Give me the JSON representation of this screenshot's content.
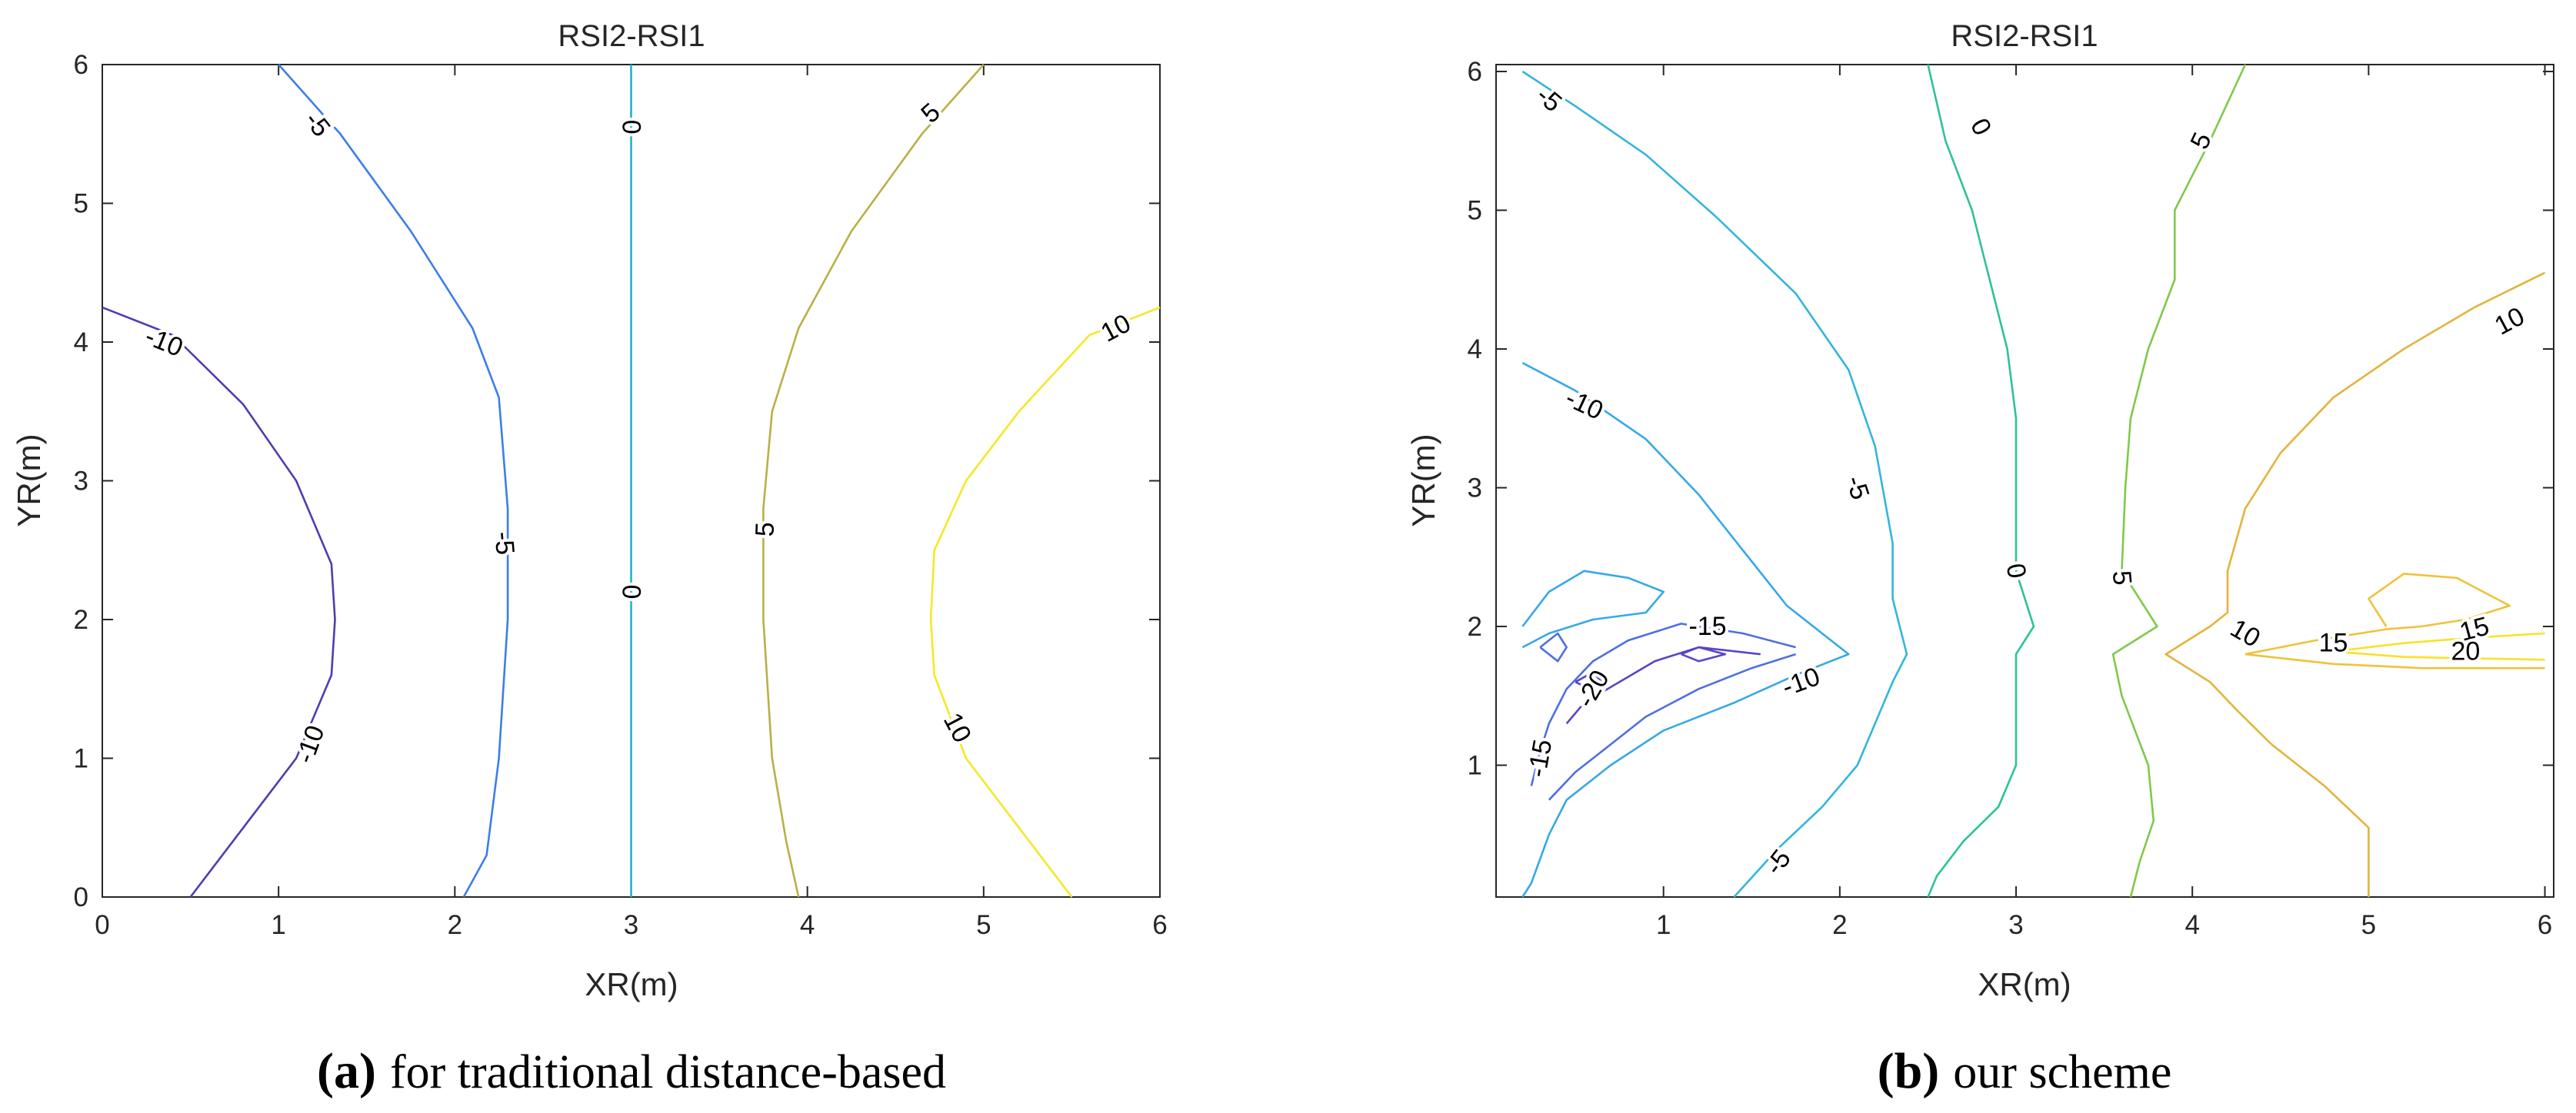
{
  "chart_data": [
    {
      "type": "contour",
      "title": "RSI2-RSI1",
      "xlabel": "XR(m)",
      "ylabel": "YR(m)",
      "xlim": [
        0,
        6
      ],
      "ylim": [
        0,
        6
      ],
      "xticks": [
        "0",
        "1",
        "2",
        "3",
        "4",
        "5",
        "6"
      ],
      "yticks": [
        "0",
        "1",
        "2",
        "3",
        "4",
        "5",
        "6"
      ],
      "caption_letter": "(a)",
      "caption_text": "for traditional distance-based",
      "contours": [
        {
          "level": -10,
          "label": "-10",
          "color": "#4b3fb0",
          "points": [
            [
              0,
              4.25
            ],
            [
              0.4,
              4.05
            ],
            [
              0.8,
              3.55
            ],
            [
              1.1,
              3.0
            ],
            [
              1.3,
              2.4
            ],
            [
              1.32,
              2.0
            ],
            [
              1.3,
              1.6
            ],
            [
              1.1,
              1.0
            ],
            [
              0.8,
              0.5
            ],
            [
              0.5,
              0.0
            ]
          ]
        },
        {
          "level": -5,
          "label": "-5",
          "color": "#3c7ee8",
          "points": [
            [
              1.0,
              6.0
            ],
            [
              1.35,
              5.5
            ],
            [
              1.75,
              4.8
            ],
            [
              2.1,
              4.1
            ],
            [
              2.25,
              3.6
            ],
            [
              2.3,
              2.8
            ],
            [
              2.3,
              2.0
            ],
            [
              2.25,
              1.0
            ],
            [
              2.18,
              0.3
            ],
            [
              2.05,
              0.0
            ]
          ]
        },
        {
          "level": 0,
          "label": "0",
          "color": "#22b2c4",
          "points": [
            [
              3.0,
              6.0
            ],
            [
              3.0,
              0.0
            ]
          ]
        },
        {
          "level": 5,
          "label": "5",
          "color": "#b9b045",
          "points": [
            [
              5.0,
              6.0
            ],
            [
              4.65,
              5.5
            ],
            [
              4.25,
              4.8
            ],
            [
              3.95,
              4.1
            ],
            [
              3.8,
              3.5
            ],
            [
              3.75,
              2.8
            ],
            [
              3.75,
              2.0
            ],
            [
              3.8,
              1.0
            ],
            [
              3.88,
              0.4
            ],
            [
              3.95,
              0.0
            ]
          ]
        },
        {
          "level": 10,
          "label": "10",
          "color": "#f5e826",
          "points": [
            [
              6.0,
              4.25
            ],
            [
              5.6,
              4.05
            ],
            [
              5.2,
              3.5
            ],
            [
              4.9,
              3.0
            ],
            [
              4.72,
              2.5
            ],
            [
              4.7,
              2.0
            ],
            [
              4.72,
              1.6
            ],
            [
              4.9,
              1.0
            ],
            [
              5.2,
              0.5
            ],
            [
              5.5,
              0.0
            ]
          ]
        }
      ],
      "contour_labels": [
        {
          "text": "-5",
          "x": 1.22,
          "y": 5.57,
          "angle": 52
        },
        {
          "text": "-10",
          "x": 0.35,
          "y": 4.0,
          "angle": 22
        },
        {
          "text": "-5",
          "x": 2.28,
          "y": 2.55,
          "angle": 85
        },
        {
          "text": "-10",
          "x": 1.18,
          "y": 1.1,
          "angle": -70
        },
        {
          "text": "0",
          "x": 3.0,
          "y": 5.55,
          "angle": 90
        },
        {
          "text": "0",
          "x": 3.0,
          "y": 2.2,
          "angle": 90
        },
        {
          "text": "5",
          "x": 4.7,
          "y": 5.65,
          "angle": -42
        },
        {
          "text": "5",
          "x": 3.76,
          "y": 2.65,
          "angle": -88
        },
        {
          "text": "10",
          "x": 5.75,
          "y": 4.1,
          "angle": -28
        },
        {
          "text": "10",
          "x": 4.85,
          "y": 1.22,
          "angle": 62
        }
      ]
    },
    {
      "type": "contour",
      "title": "RSI2-RSI1",
      "xlabel": "XR(m)",
      "ylabel": "YR(m)",
      "xlim": [
        0.05,
        6.05
      ],
      "ylim": [
        0.05,
        6.05
      ],
      "xticks": [
        "1",
        "2",
        "3",
        "4",
        "5",
        "6"
      ],
      "yticks": [
        "1",
        "2",
        "3",
        "4",
        "5",
        "6"
      ],
      "caption_letter": "(b)",
      "caption_text": "our scheme",
      "contours": [
        {
          "level": -5,
          "label": "-5",
          "color": "#33b5dc",
          "points": [
            [
              0.2,
              6.0
            ],
            [
              0.5,
              5.75
            ],
            [
              0.9,
              5.4
            ],
            [
              1.3,
              4.95
            ],
            [
              1.75,
              4.4
            ],
            [
              2.05,
              3.85
            ],
            [
              2.2,
              3.3
            ],
            [
              2.3,
              2.6
            ],
            [
              2.3,
              2.2
            ],
            [
              2.38,
              1.8
            ],
            [
              2.3,
              1.6
            ],
            [
              2.2,
              1.3
            ],
            [
              2.1,
              1.0
            ],
            [
              1.9,
              0.7
            ],
            [
              1.65,
              0.4
            ],
            [
              1.4,
              0.05
            ]
          ]
        },
        {
          "level": -10,
          "label": "-10",
          "color": "#36a8e8",
          "points": [
            [
              0.2,
              3.9
            ],
            [
              0.5,
              3.7
            ],
            [
              0.9,
              3.35
            ],
            [
              1.2,
              2.95
            ],
            [
              1.45,
              2.55
            ],
            [
              1.7,
              2.15
            ],
            [
              2.05,
              1.8
            ],
            [
              1.75,
              1.65
            ],
            [
              1.4,
              1.45
            ],
            [
              1.0,
              1.25
            ],
            [
              0.7,
              1.0
            ],
            [
              0.45,
              0.75
            ],
            [
              0.35,
              0.5
            ],
            [
              0.25,
              0.15
            ],
            [
              0.2,
              0.05
            ]
          ]
        },
        {
          "level": -10,
          "label": "",
          "color": "#36a8e8",
          "points": [
            [
              0.2,
              2.0
            ],
            [
              0.35,
              2.25
            ],
            [
              0.55,
              2.4
            ],
            [
              0.8,
              2.35
            ],
            [
              1.0,
              2.25
            ],
            [
              0.9,
              2.1
            ],
            [
              0.6,
              2.05
            ],
            [
              0.35,
              1.95
            ],
            [
              0.2,
              1.85
            ]
          ]
        },
        {
          "level": -15,
          "label": "-15",
          "color": "#4f6fe0",
          "points": [
            [
              1.75,
              1.85
            ],
            [
              1.45,
              1.95
            ],
            [
              1.1,
              2.02
            ],
            [
              0.8,
              1.9
            ],
            [
              0.6,
              1.75
            ],
            [
              0.45,
              1.55
            ],
            [
              0.35,
              1.3
            ],
            [
              0.3,
              1.1
            ],
            [
              0.25,
              0.85
            ]
          ]
        },
        {
          "level": -15,
          "label": "",
          "color": "#4f6fe0",
          "points": [
            [
              1.75,
              1.8
            ],
            [
              1.5,
              1.7
            ],
            [
              1.2,
              1.55
            ],
            [
              0.9,
              1.35
            ],
            [
              0.7,
              1.15
            ],
            [
              0.5,
              0.95
            ],
            [
              0.35,
              0.75
            ]
          ]
        },
        {
          "level": -15,
          "label": "",
          "color": "#4f6fe0",
          "points": [
            [
              0.3,
              1.85
            ],
            [
              0.4,
              1.95
            ],
            [
              0.45,
              1.85
            ],
            [
              0.4,
              1.75
            ],
            [
              0.3,
              1.85
            ]
          ]
        },
        {
          "level": -20,
          "label": "-20",
          "color": "#5a44c8",
          "points": [
            [
              1.55,
              1.8
            ],
            [
              1.2,
              1.85
            ],
            [
              0.95,
              1.75
            ],
            [
              0.75,
              1.6
            ],
            [
              0.55,
              1.45
            ],
            [
              0.45,
              1.3
            ]
          ]
        },
        {
          "level": -20,
          "label": "",
          "color": "#5a44c8",
          "points": [
            [
              1.1,
              1.8
            ],
            [
              1.2,
              1.85
            ],
            [
              1.35,
              1.8
            ],
            [
              1.2,
              1.75
            ],
            [
              1.1,
              1.8
            ]
          ]
        },
        {
          "level": -20,
          "label": "",
          "color": "#5a44c8",
          "points": [
            [
              0.5,
              1.6
            ],
            [
              0.6,
              1.67
            ],
            [
              0.65,
              1.6
            ],
            [
              0.58,
              1.55
            ],
            [
              0.5,
              1.6
            ]
          ]
        },
        {
          "level": 0,
          "label": "0",
          "color": "#2ec19a",
          "points": [
            [
              2.5,
              6.05
            ],
            [
              2.6,
              5.5
            ],
            [
              2.75,
              5.0
            ],
            [
              2.85,
              4.5
            ],
            [
              2.95,
              4.0
            ],
            [
              3.0,
              3.5
            ],
            [
              3.0,
              3.0
            ],
            [
              3.0,
              2.4
            ],
            [
              3.1,
              2.0
            ],
            [
              3.0,
              1.8
            ],
            [
              3.0,
              1.4
            ],
            [
              3.0,
              1.0
            ],
            [
              2.9,
              0.7
            ],
            [
              2.7,
              0.45
            ],
            [
              2.55,
              0.2
            ],
            [
              2.5,
              0.05
            ]
          ]
        },
        {
          "level": 5,
          "label": "5",
          "color": "#7fc94a",
          "points": [
            [
              4.3,
              6.05
            ],
            [
              4.1,
              5.5
            ],
            [
              3.9,
              5.0
            ],
            [
              3.9,
              4.5
            ],
            [
              3.75,
              4.0
            ],
            [
              3.65,
              3.5
            ],
            [
              3.62,
              3.0
            ],
            [
              3.6,
              2.4
            ],
            [
              3.8,
              2.0
            ],
            [
              3.55,
              1.8
            ],
            [
              3.6,
              1.5
            ],
            [
              3.75,
              1.0
            ],
            [
              3.78,
              0.6
            ],
            [
              3.7,
              0.3
            ],
            [
              3.65,
              0.05
            ]
          ]
        },
        {
          "level": 10,
          "label": "10",
          "color": "#e3b43c",
          "points": [
            [
              6.0,
              4.55
            ],
            [
              5.6,
              4.3
            ],
            [
              5.2,
              4.0
            ],
            [
              4.8,
              3.65
            ],
            [
              4.5,
              3.25
            ],
            [
              4.3,
              2.85
            ],
            [
              4.2,
              2.4
            ],
            [
              4.2,
              2.1
            ],
            [
              4.1,
              2.0
            ],
            [
              3.85,
              1.8
            ],
            [
              4.1,
              1.6
            ],
            [
              4.25,
              1.4
            ],
            [
              4.45,
              1.15
            ],
            [
              4.75,
              0.85
            ],
            [
              5.0,
              0.55
            ],
            [
              5.0,
              0.05
            ]
          ]
        },
        {
          "level": 15,
          "label": "15",
          "color": "#f0c23a",
          "points": [
            [
              4.3,
              1.8
            ],
            [
              4.7,
              1.9
            ],
            [
              5.1,
              1.98
            ],
            [
              5.3,
              2.0
            ]
          ]
        },
        {
          "level": 15,
          "label": "",
          "color": "#f0c23a",
          "points": [
            [
              4.3,
              1.8
            ],
            [
              4.8,
              1.73
            ],
            [
              5.3,
              1.7
            ],
            [
              6.0,
              1.7
            ]
          ]
        },
        {
          "level": 15,
          "label": "15",
          "color": "#f0c23a",
          "points": [
            [
              5.1,
              2.0
            ],
            [
              5.0,
              2.2
            ],
            [
              5.2,
              2.38
            ],
            [
              5.5,
              2.35
            ],
            [
              5.8,
              2.15
            ],
            [
              5.55,
              2.05
            ],
            [
              5.3,
              2.0
            ]
          ]
        },
        {
          "level": 20,
          "label": "20",
          "color": "#f6e22c",
          "points": [
            [
              4.8,
              1.82
            ],
            [
              5.2,
              1.88
            ],
            [
              5.6,
              1.92
            ],
            [
              6.0,
              1.95
            ]
          ]
        },
        {
          "level": 20,
          "label": "",
          "color": "#f6e22c",
          "points": [
            [
              4.8,
              1.82
            ],
            [
              5.2,
              1.78
            ],
            [
              5.6,
              1.77
            ],
            [
              6.0,
              1.76
            ]
          ]
        }
      ],
      "contour_labels": [
        {
          "text": "-5",
          "x": 0.35,
          "y": 5.8,
          "angle": 40
        },
        {
          "text": "-10",
          "x": 0.55,
          "y": 3.6,
          "angle": 25
        },
        {
          "text": "-5",
          "x": 2.1,
          "y": 3.0,
          "angle": 72
        },
        {
          "text": "-15",
          "x": 1.25,
          "y": 2.0,
          "angle": 0
        },
        {
          "text": "-20",
          "x": 0.6,
          "y": 1.55,
          "angle": -60
        },
        {
          "text": "-15",
          "x": 0.3,
          "y": 1.05,
          "angle": -80
        },
        {
          "text": "-10",
          "x": 1.78,
          "y": 1.6,
          "angle": -20
        },
        {
          "text": "-5",
          "x": 1.65,
          "y": 0.3,
          "angle": -52
        },
        {
          "text": "0",
          "x": 2.8,
          "y": 5.6,
          "angle": 62
        },
        {
          "text": "0",
          "x": 3.0,
          "y": 2.4,
          "angle": 80
        },
        {
          "text": "5",
          "x": 4.05,
          "y": 5.5,
          "angle": -65
        },
        {
          "text": "5",
          "x": 3.6,
          "y": 2.35,
          "angle": 85
        },
        {
          "text": "10",
          "x": 5.8,
          "y": 4.2,
          "angle": -28
        },
        {
          "text": "10",
          "x": 4.3,
          "y": 1.95,
          "angle": 30
        },
        {
          "text": "15",
          "x": 4.8,
          "y": 1.88,
          "angle": 0
        },
        {
          "text": "15",
          "x": 5.6,
          "y": 1.98,
          "angle": -15
        },
        {
          "text": "20",
          "x": 5.55,
          "y": 1.82,
          "angle": 0
        }
      ]
    }
  ]
}
